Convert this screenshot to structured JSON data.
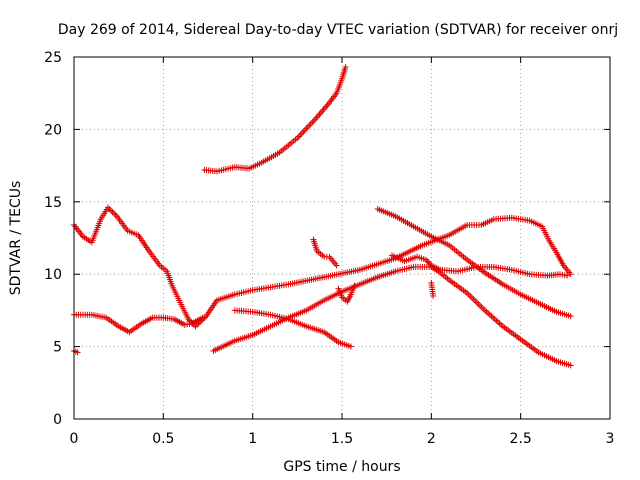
{
  "chart_data": {
    "type": "scatter",
    "title": "Day 269 of 2014, Sidereal Day-to-day VTEC variation (SDTVAR) for receiver onrj",
    "xlabel": "GPS time / hours",
    "ylabel": "SDTVAR / TECUs",
    "xlim": [
      0,
      3
    ],
    "ylim": [
      0,
      25
    ],
    "xticks": [
      0,
      0.5,
      1,
      1.5,
      2,
      2.5,
      3
    ],
    "xtick_labels": [
      "0",
      "0.5",
      "1",
      "1.5",
      "2",
      "2.5",
      "3"
    ],
    "yticks": [
      0,
      5,
      10,
      15,
      20,
      25
    ],
    "ytick_labels": [
      "0",
      "5",
      "10",
      "15",
      "20",
      "25"
    ],
    "grid": true,
    "marker": "+",
    "color": "#e00000",
    "series": [
      {
        "name": "s1",
        "points": [
          [
            0,
            13.4
          ],
          [
            0.05,
            12.6
          ],
          [
            0.1,
            12.2
          ],
          [
            0.15,
            13.8
          ],
          [
            0.19,
            14.6
          ],
          [
            0.24,
            14.0
          ],
          [
            0.3,
            13.0
          ],
          [
            0.36,
            12.7
          ],
          [
            0.42,
            11.6
          ],
          [
            0.48,
            10.6
          ],
          [
            0.52,
            10.2
          ],
          [
            0.55,
            9.2
          ],
          [
            0.6,
            7.9
          ],
          [
            0.64,
            6.9
          ],
          [
            0.68,
            6.4
          ],
          [
            0.74,
            7.1
          ],
          [
            0.8,
            8.2
          ],
          [
            0.9,
            8.6
          ],
          [
            1.0,
            8.9
          ],
          [
            1.2,
            9.3
          ],
          [
            1.4,
            9.8
          ],
          [
            1.6,
            10.3
          ],
          [
            1.8,
            11.1
          ],
          [
            1.95,
            12.0
          ],
          [
            2.1,
            12.7
          ],
          [
            2.2,
            13.4
          ],
          [
            2.28,
            13.4
          ],
          [
            2.35,
            13.8
          ],
          [
            2.45,
            13.9
          ],
          [
            2.55,
            13.7
          ],
          [
            2.62,
            13.3
          ],
          [
            2.66,
            12.3
          ],
          [
            2.7,
            11.5
          ],
          [
            2.74,
            10.6
          ],
          [
            2.78,
            10.0
          ]
        ]
      },
      {
        "name": "s2",
        "points": [
          [
            0,
            7.2
          ],
          [
            0.1,
            7.2
          ],
          [
            0.18,
            7.0
          ],
          [
            0.25,
            6.4
          ],
          [
            0.31,
            6.0
          ],
          [
            0.38,
            6.6
          ],
          [
            0.44,
            7.0
          ],
          [
            0.5,
            7.0
          ],
          [
            0.56,
            6.9
          ],
          [
            0.62,
            6.5
          ],
          [
            0.66,
            6.6
          ],
          [
            0.72,
            7.0
          ]
        ]
      },
      {
        "name": "s3",
        "points": [
          [
            0,
            4.7
          ],
          [
            0.02,
            4.6
          ]
        ]
      },
      {
        "name": "s4",
        "points": [
          [
            0.73,
            17.2
          ],
          [
            0.8,
            17.1
          ],
          [
            0.9,
            17.4
          ],
          [
            0.98,
            17.3
          ],
          [
            1.05,
            17.7
          ],
          [
            1.15,
            18.4
          ],
          [
            1.25,
            19.4
          ],
          [
            1.35,
            20.7
          ],
          [
            1.42,
            21.7
          ],
          [
            1.47,
            22.5
          ],
          [
            1.5,
            23.5
          ],
          [
            1.52,
            24.3
          ]
        ]
      },
      {
        "name": "s5",
        "points": [
          [
            0.78,
            4.7
          ],
          [
            0.9,
            5.4
          ],
          [
            1.0,
            5.8
          ],
          [
            1.1,
            6.4
          ],
          [
            1.2,
            7.0
          ],
          [
            1.3,
            7.5
          ],
          [
            1.4,
            8.2
          ],
          [
            1.5,
            8.8
          ],
          [
            1.6,
            9.3
          ],
          [
            1.7,
            9.8
          ],
          [
            1.8,
            10.2
          ],
          [
            1.9,
            10.5
          ],
          [
            2.0,
            10.5
          ],
          [
            2.05,
            10.1
          ],
          [
            2.1,
            9.6
          ],
          [
            2.2,
            8.7
          ],
          [
            2.3,
            7.5
          ],
          [
            2.4,
            6.4
          ],
          [
            2.5,
            5.5
          ],
          [
            2.6,
            4.6
          ],
          [
            2.7,
            4.0
          ],
          [
            2.78,
            3.7
          ]
        ]
      },
      {
        "name": "s6",
        "points": [
          [
            0.9,
            7.5
          ],
          [
            1.0,
            7.4
          ],
          [
            1.1,
            7.2
          ],
          [
            1.2,
            6.9
          ],
          [
            1.3,
            6.4
          ],
          [
            1.4,
            6.0
          ],
          [
            1.48,
            5.3
          ],
          [
            1.55,
            5.0
          ]
        ]
      },
      {
        "name": "s7",
        "points": [
          [
            1.34,
            12.4
          ],
          [
            1.36,
            11.6
          ],
          [
            1.4,
            11.2
          ],
          [
            1.43,
            11.2
          ],
          [
            1.47,
            10.6
          ]
        ]
      },
      {
        "name": "s8",
        "points": [
          [
            1.48,
            9.0
          ],
          [
            1.5,
            8.4
          ],
          [
            1.53,
            8.1
          ],
          [
            1.55,
            8.6
          ],
          [
            1.57,
            9.2
          ]
        ]
      },
      {
        "name": "s9",
        "points": [
          [
            1.7,
            14.5
          ],
          [
            1.8,
            14.0
          ],
          [
            1.9,
            13.3
          ],
          [
            2.0,
            12.6
          ],
          [
            2.1,
            12.0
          ],
          [
            2.2,
            11.0
          ],
          [
            2.3,
            10.1
          ],
          [
            2.4,
            9.3
          ],
          [
            2.5,
            8.6
          ],
          [
            2.6,
            8.0
          ],
          [
            2.7,
            7.4
          ],
          [
            2.78,
            7.1
          ]
        ]
      },
      {
        "name": "s10",
        "points": [
          [
            1.78,
            11.3
          ],
          [
            1.85,
            10.9
          ],
          [
            1.92,
            11.2
          ],
          [
            1.97,
            11.0
          ],
          [
            2.0,
            10.6
          ],
          [
            2.05,
            10.3
          ],
          [
            2.15,
            10.2
          ],
          [
            2.25,
            10.5
          ],
          [
            2.35,
            10.5
          ],
          [
            2.45,
            10.3
          ],
          [
            2.55,
            10.0
          ],
          [
            2.65,
            9.9
          ],
          [
            2.72,
            10.0
          ],
          [
            2.76,
            9.9
          ]
        ]
      },
      {
        "name": "s11",
        "points": [
          [
            2.0,
            9.4
          ],
          [
            2.01,
            8.5
          ]
        ]
      }
    ]
  }
}
